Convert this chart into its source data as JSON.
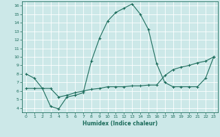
{
  "xlabel": "Humidex (Indice chaleur)",
  "background_color": "#cce8e8",
  "grid_color": "#ffffff",
  "line_color": "#1a6b5a",
  "xlim": [
    -0.5,
    23.5
  ],
  "ylim": [
    3.5,
    16.5
  ],
  "xticks": [
    0,
    1,
    2,
    3,
    4,
    5,
    6,
    7,
    8,
    9,
    10,
    11,
    12,
    13,
    14,
    15,
    16,
    17,
    18,
    19,
    20,
    21,
    22,
    23
  ],
  "yticks": [
    4,
    5,
    6,
    7,
    8,
    9,
    10,
    11,
    12,
    13,
    14,
    15,
    16
  ],
  "curve1_x": [
    0,
    1,
    2,
    3,
    4,
    5,
    6,
    7,
    8,
    9,
    10,
    11,
    12,
    13,
    14,
    15,
    16,
    17,
    18,
    19,
    20,
    21,
    22,
    23
  ],
  "curve1_y": [
    8.0,
    7.5,
    6.3,
    4.2,
    3.9,
    5.3,
    5.5,
    5.8,
    9.5,
    12.2,
    14.2,
    15.2,
    15.7,
    16.2,
    15.0,
    13.2,
    9.2,
    7.0,
    6.5,
    6.5,
    6.5,
    6.5,
    7.5,
    10.0
  ],
  "curve2_x": [
    0,
    1,
    2,
    3,
    4,
    5,
    6,
    7,
    8,
    9,
    10,
    11,
    12,
    13,
    14,
    15,
    16,
    17,
    18,
    19,
    20,
    21,
    22,
    23
  ],
  "curve2_y": [
    6.3,
    6.3,
    6.3,
    6.3,
    5.3,
    5.5,
    5.8,
    6.0,
    6.2,
    6.3,
    6.5,
    6.5,
    6.5,
    6.6,
    6.6,
    6.7,
    6.7,
    7.8,
    8.5,
    8.8,
    9.0,
    9.3,
    9.5,
    10.0
  ]
}
